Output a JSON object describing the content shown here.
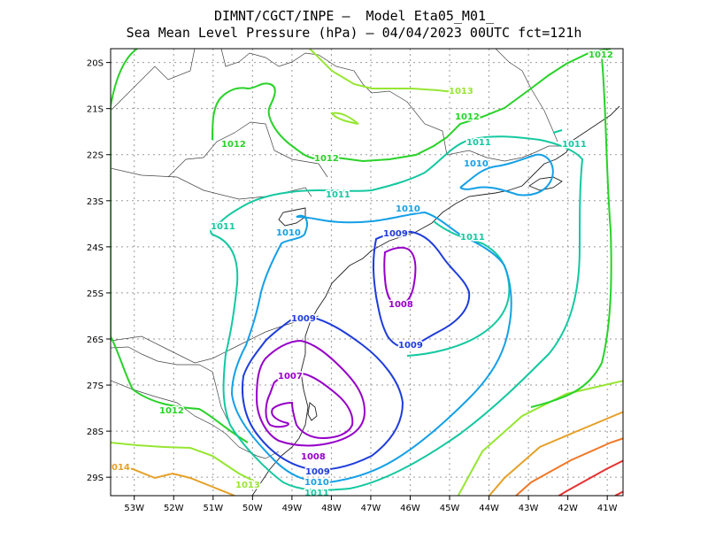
{
  "title": {
    "line1": "DIMNT/CGCT/INPE –  Model Eta05_M01_",
    "line2": "Sea Mean Level Pressure (hPa) – 04/04/2023 00UTC fct=121h"
  },
  "axes": {
    "lat_labels": [
      "20S",
      "21S",
      "22S",
      "23S",
      "24S",
      "25S",
      "26S",
      "27S",
      "28S",
      "29S"
    ],
    "lon_labels": [
      "53W",
      "52W",
      "51W",
      "50W",
      "49W",
      "48W",
      "47W",
      "46W",
      "45W",
      "44W",
      "43W",
      "42W",
      "41W"
    ],
    "lat_range": [
      -29.4,
      -19.7
    ],
    "lon_range": [
      -53.6,
      -40.6
    ],
    "grid": true
  },
  "contour_colors": {
    "1007": "#9600c8",
    "1008": "#9600c8",
    "1009": "#1e3cdc",
    "1010": "#14a0e6",
    "1011": "#14c8a0",
    "1012": "#28d228",
    "1013": "#96e632",
    "1014": "#e6a028",
    "1015": "#f07828",
    "1016": "#e63232"
  },
  "contour_labels": [
    {
      "text": "1012",
      "color": "#28d228"
    },
    {
      "text": "1012",
      "color": "#28d228"
    },
    {
      "text": "1013",
      "color": "#96e632"
    },
    {
      "text": "1012",
      "color": "#28d228"
    },
    {
      "text": "1012",
      "color": "#28d228"
    },
    {
      "text": "1011",
      "color": "#14c8a0"
    },
    {
      "text": "1011",
      "color": "#14c8a0"
    },
    {
      "text": "1011",
      "color": "#14c8a0"
    },
    {
      "text": "1010",
      "color": "#14a0e6"
    },
    {
      "text": "1011",
      "color": "#14c8a0"
    },
    {
      "text": "1010",
      "color": "#14a0e6"
    },
    {
      "text": "1010",
      "color": "#14a0e6"
    },
    {
      "text": "1011",
      "color": "#14c8a0"
    },
    {
      "text": "1009",
      "color": "#1e3cdc"
    },
    {
      "text": "1008",
      "color": "#9600c8"
    },
    {
      "text": "1009",
      "color": "#1e3cdc"
    },
    {
      "text": "1009",
      "color": "#1e3cdc"
    },
    {
      "text": "1007",
      "color": "#9600c8"
    },
    {
      "text": "1012",
      "color": "#28d228"
    },
    {
      "text": "1008",
      "color": "#9600c8"
    },
    {
      "text": "1009",
      "color": "#1e3cdc"
    },
    {
      "text": "1010",
      "color": "#14a0e6"
    },
    {
      "text": "1011",
      "color": "#14c8a0"
    },
    {
      "text": "1013",
      "color": "#96e632"
    },
    {
      "text": "014",
      "color": "#e6a028"
    }
  ]
}
